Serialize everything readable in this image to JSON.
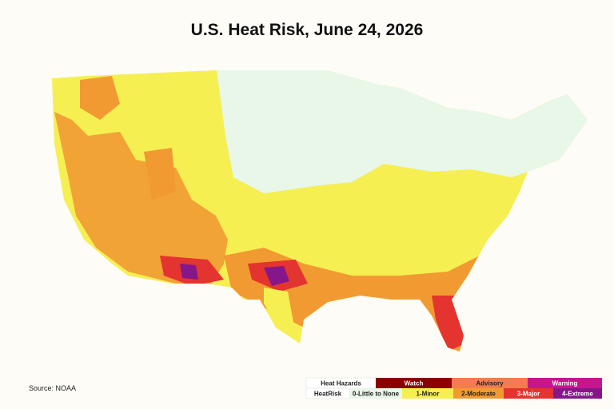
{
  "title": "U.S. Heat Risk, June 24, 2026",
  "source": "Source: NOAA",
  "legend": {
    "hazards": {
      "label": "Heat Hazards",
      "items": [
        {
          "label": "Watch",
          "color": "#8b0000"
        },
        {
          "label": "Advisory",
          "color": "#f47c4f"
        },
        {
          "label": "Warning",
          "color": "#c5168f"
        }
      ]
    },
    "heatrisk": {
      "label": "HeatRisk",
      "items": [
        {
          "label": "0-Little to None",
          "color": "#e8f7e8"
        },
        {
          "label": "1-Minor",
          "color": "#f5ef52"
        },
        {
          "label": "2-Moderate",
          "color": "#f29a32"
        },
        {
          "label": "3-Major",
          "color": "#e4342f"
        },
        {
          "label": "4-Extreme",
          "color": "#85178a"
        }
      ]
    }
  }
}
